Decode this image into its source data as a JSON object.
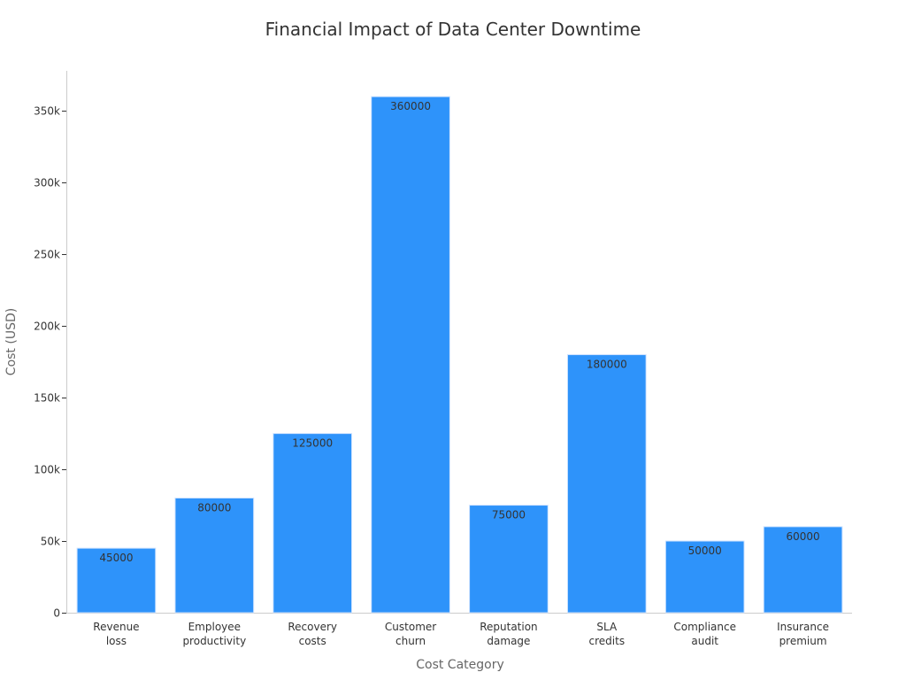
{
  "chart_data": {
    "type": "bar",
    "title": "Financial Impact of Data Center Downtime",
    "xlabel": "Cost Category",
    "ylabel": "Cost (USD)",
    "categories": [
      [
        "Revenue",
        "loss"
      ],
      [
        "Employee",
        "productivity"
      ],
      [
        "Recovery",
        "costs"
      ],
      [
        "Customer",
        "churn"
      ],
      [
        "Reputation",
        "damage"
      ],
      [
        "SLA",
        "credits"
      ],
      [
        "Compliance",
        "audit"
      ],
      [
        "Insurance",
        "premium"
      ]
    ],
    "values": [
      45000,
      80000,
      125000,
      360000,
      75000,
      180000,
      50000,
      60000
    ],
    "data_labels": [
      "45000",
      "80000",
      "125000",
      "360000",
      "75000",
      "180000",
      "50000",
      "60000"
    ],
    "ylim": [
      0,
      378000
    ],
    "yticks": [
      {
        "value": 0,
        "label": "0"
      },
      {
        "value": 50000,
        "label": "50k"
      },
      {
        "value": 100000,
        "label": "100k"
      },
      {
        "value": 150000,
        "label": "150k"
      },
      {
        "value": 200000,
        "label": "200k"
      },
      {
        "value": 250000,
        "label": "250k"
      },
      {
        "value": 300000,
        "label": "300k"
      },
      {
        "value": 350000,
        "label": "350k"
      }
    ],
    "bar_color": "#2e93fa",
    "grid": false,
    "legend": "none"
  }
}
